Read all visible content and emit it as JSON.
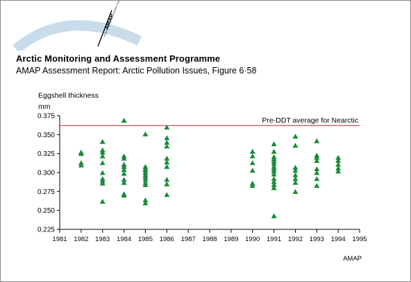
{
  "header": {
    "logo_text": "AMAP",
    "logo_subtext": "Arctic Monitoring and Assessment Programme",
    "org_title": "Arctic Monitoring and Assessment Programme",
    "figure_subtitle": "AMAP Assessment Report: Arctic Pollution Issues, Figure 6·58"
  },
  "footer": {
    "credit": "AMAP"
  },
  "colors": {
    "marker": "#1a8a3c",
    "reference_line": "#cc2222",
    "axis": "#000000",
    "logo_arc": "#c8dcea"
  },
  "icons": {
    "logo": "amap-logo-icon",
    "marker": "triangle-up"
  },
  "chart_data": {
    "type": "scatter",
    "title": "",
    "ylabel": [
      "Eggshell thickness",
      "mm"
    ],
    "xlabel": "",
    "xlim": [
      1981,
      1995
    ],
    "ylim": [
      0.225,
      0.375
    ],
    "xticks": [
      1981,
      1982,
      1983,
      1984,
      1985,
      1986,
      1987,
      1988,
      1989,
      1990,
      1991,
      1992,
      1993,
      1994,
      1995
    ],
    "yticks": [
      "0.225",
      "0.250",
      "0.275",
      "0.300",
      "0.325",
      "0.350",
      "0.375"
    ],
    "ytick_values": [
      0.225,
      0.25,
      0.275,
      0.3,
      0.325,
      0.35,
      0.375
    ],
    "grid": false,
    "reference_line": {
      "y": 0.362,
      "label": "Pre-DDT average for Nearctic"
    },
    "series": [
      {
        "marker": "triangle",
        "points": [
          [
            1982,
            0.327
          ],
          [
            1982,
            0.325
          ],
          [
            1982,
            0.313
          ],
          [
            1982,
            0.31
          ],
          [
            1983,
            0.341
          ],
          [
            1983,
            0.33
          ],
          [
            1983,
            0.327
          ],
          [
            1983,
            0.322
          ],
          [
            1983,
            0.313
          ],
          [
            1983,
            0.3
          ],
          [
            1983,
            0.292
          ],
          [
            1983,
            0.289
          ],
          [
            1983,
            0.286
          ],
          [
            1983,
            0.262
          ],
          [
            1984,
            0.369
          ],
          [
            1984,
            0.322
          ],
          [
            1984,
            0.319
          ],
          [
            1984,
            0.311
          ],
          [
            1984,
            0.308
          ],
          [
            1984,
            0.304
          ],
          [
            1984,
            0.299
          ],
          [
            1984,
            0.291
          ],
          [
            1984,
            0.287
          ],
          [
            1984,
            0.272
          ],
          [
            1984,
            0.27
          ],
          [
            1985,
            0.351
          ],
          [
            1985,
            0.308
          ],
          [
            1985,
            0.305
          ],
          [
            1985,
            0.303
          ],
          [
            1985,
            0.3
          ],
          [
            1985,
            0.297
          ],
          [
            1985,
            0.294
          ],
          [
            1985,
            0.291
          ],
          [
            1985,
            0.287
          ],
          [
            1985,
            0.284
          ],
          [
            1985,
            0.264
          ],
          [
            1985,
            0.26
          ],
          [
            1986,
            0.36
          ],
          [
            1986,
            0.346
          ],
          [
            1986,
            0.34
          ],
          [
            1986,
            0.335
          ],
          [
            1986,
            0.319
          ],
          [
            1986,
            0.314
          ],
          [
            1986,
            0.308
          ],
          [
            1986,
            0.291
          ],
          [
            1986,
            0.285
          ],
          [
            1986,
            0.271
          ],
          [
            1990,
            0.328
          ],
          [
            1990,
            0.322
          ],
          [
            1990,
            0.313
          ],
          [
            1990,
            0.303
          ],
          [
            1990,
            0.286
          ],
          [
            1990,
            0.283
          ],
          [
            1991,
            0.338
          ],
          [
            1991,
            0.328
          ],
          [
            1991,
            0.321
          ],
          [
            1991,
            0.318
          ],
          [
            1991,
            0.315
          ],
          [
            1991,
            0.312
          ],
          [
            1991,
            0.308
          ],
          [
            1991,
            0.305
          ],
          [
            1991,
            0.302
          ],
          [
            1991,
            0.298
          ],
          [
            1991,
            0.292
          ],
          [
            1991,
            0.288
          ],
          [
            1991,
            0.284
          ],
          [
            1991,
            0.28
          ],
          [
            1991,
            0.243
          ],
          [
            1992,
            0.348
          ],
          [
            1992,
            0.336
          ],
          [
            1992,
            0.307
          ],
          [
            1992,
            0.303
          ],
          [
            1992,
            0.297
          ],
          [
            1992,
            0.292
          ],
          [
            1992,
            0.287
          ],
          [
            1992,
            0.275
          ],
          [
            1993,
            0.342
          ],
          [
            1993,
            0.323
          ],
          [
            1993,
            0.32
          ],
          [
            1993,
            0.316
          ],
          [
            1993,
            0.305
          ],
          [
            1993,
            0.3
          ],
          [
            1993,
            0.292
          ],
          [
            1993,
            0.283
          ],
          [
            1994,
            0.32
          ],
          [
            1994,
            0.316
          ],
          [
            1994,
            0.311
          ],
          [
            1994,
            0.306
          ],
          [
            1994,
            0.302
          ]
        ]
      }
    ]
  }
}
